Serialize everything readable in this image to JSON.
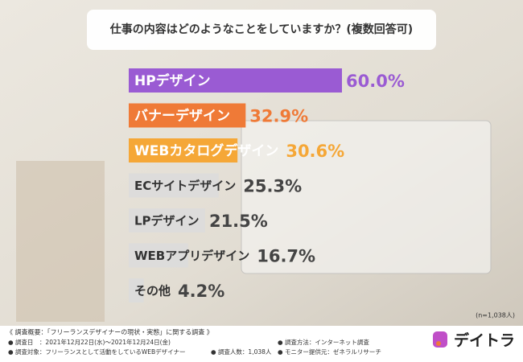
{
  "chart_data": {
    "type": "bar",
    "orientation": "horizontal",
    "title": "仕事の内容はどのようなことをしていますか？(複数回答可)",
    "categories": [
      "HPデザイン",
      "バナーデザイン",
      "WEBカタログデザイン",
      "ECサイトデザイン",
      "LPデザイン",
      "WEBアプリデザイン",
      "その他"
    ],
    "values": [
      60.0,
      32.9,
      30.6,
      25.3,
      21.5,
      16.7,
      4.2
    ],
    "value_labels": [
      "60.0%",
      "32.9%",
      "30.6%",
      "25.3%",
      "21.5%",
      "16.7%",
      "4.2%"
    ],
    "colors": [
      "#9a5bd3",
      "#ef7a37",
      "#f5a737",
      "#dcdcdc",
      "#dcdcdc",
      "#dcdcdc",
      "#dcdcdc"
    ],
    "annotation": "(n=1,038人)"
  },
  "footer": {
    "heading": "《 調査概要：「フリーランスデザイナーの現状・実態」に関する調査 》",
    "items": [
      "調査日　：2021年12月22日(水)～2021年12月24日(金)",
      "調査方法：インターネット調査",
      "調査対象：フリーランスとして活動をしているWEBデザイナー",
      "調査人数：1,038人",
      "モニター提供元：ゼネラルリサーチ"
    ],
    "logo": "デイトラ"
  }
}
